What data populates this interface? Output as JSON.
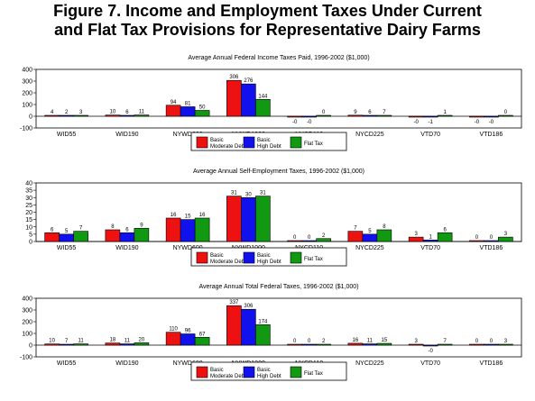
{
  "figure": {
    "title_line1": "Figure 7. Income and Employment Taxes Under Current",
    "title_line2": "and Flat Tax Provisions for Representative Dairy Farms"
  },
  "colors": {
    "basic_moderate_debt": "#ee1111",
    "basic_high_debt": "#1111ee",
    "flat_tax": "#119911"
  },
  "chart_data": [
    {
      "type": "bar",
      "title": "Average Annual Federal Income Taxes Paid, 1996-2002 ($1,000)",
      "categories": [
        "WID55",
        "WID190",
        "NYWD600",
        "NYWD1000",
        "NYCD110",
        "NYCD225",
        "VTD70",
        "VTD186"
      ],
      "series": [
        {
          "name": "Basic Moderate Debt",
          "values": [
            4,
            10,
            94,
            306,
            0,
            9,
            0,
            0
          ]
        },
        {
          "name": "Basic High Debt",
          "values": [
            2,
            6,
            81,
            276,
            0,
            6,
            -1,
            0
          ]
        },
        {
          "name": "Flat Tax",
          "values": [
            3,
            11,
            50,
            144,
            0,
            7,
            1,
            0
          ]
        }
      ],
      "ylim": [
        -100,
        400
      ],
      "yticks": [
        -100,
        0,
        100,
        200,
        300,
        400
      ],
      "legend": "bottom-center",
      "grid": false
    },
    {
      "type": "bar",
      "title": "Average Annual Self-Employment Taxes, 1996-2002 ($1,000)",
      "categories": [
        "WID55",
        "WID190",
        "NYWD600",
        "NYWD1000",
        "NYCD110",
        "NYCD225",
        "VTD70",
        "VTD186"
      ],
      "series": [
        {
          "name": "Basic Moderate Debt",
          "values": [
            6,
            8,
            16,
            31,
            0,
            7,
            3,
            0
          ]
        },
        {
          "name": "Basic High Debt",
          "values": [
            5,
            6,
            15,
            30,
            0,
            5,
            1,
            0
          ]
        },
        {
          "name": "Flat Tax",
          "values": [
            7,
            9,
            16,
            31,
            2,
            8,
            6,
            3
          ]
        }
      ],
      "ylim": [
        0,
        40
      ],
      "yticks": [
        0,
        5,
        10,
        15,
        20,
        25,
        30,
        35,
        40
      ],
      "legend": "bottom-center",
      "grid": false
    },
    {
      "type": "bar",
      "title": "Average Annual Total Federal Taxes, 1996-2002 ($1,000)",
      "categories": [
        "WID55",
        "WID190",
        "NYWD600",
        "NYWD1000",
        "NYCD110",
        "NYCD225",
        "VTD70",
        "VTD186"
      ],
      "series": [
        {
          "name": "Basic Moderate Debt",
          "values": [
            10,
            18,
            110,
            337,
            0,
            16,
            3,
            0
          ]
        },
        {
          "name": "Basic High Debt",
          "values": [
            7,
            11,
            96,
            306,
            0,
            11,
            0,
            0
          ]
        },
        {
          "name": "Flat Tax",
          "values": [
            11,
            20,
            67,
            174,
            2,
            15,
            7,
            3
          ]
        }
      ],
      "ylim": [
        -100,
        400
      ],
      "yticks": [
        -100,
        0,
        100,
        200,
        300,
        400
      ],
      "legend": "bottom-center",
      "grid": false
    }
  ],
  "legend_labels": [
    {
      "line1": "Basic",
      "line2": "Moderate Debt"
    },
    {
      "line1": "Basic",
      "line2": "High Debt"
    },
    {
      "line1": "Flat Tax",
      "line2": ""
    }
  ]
}
